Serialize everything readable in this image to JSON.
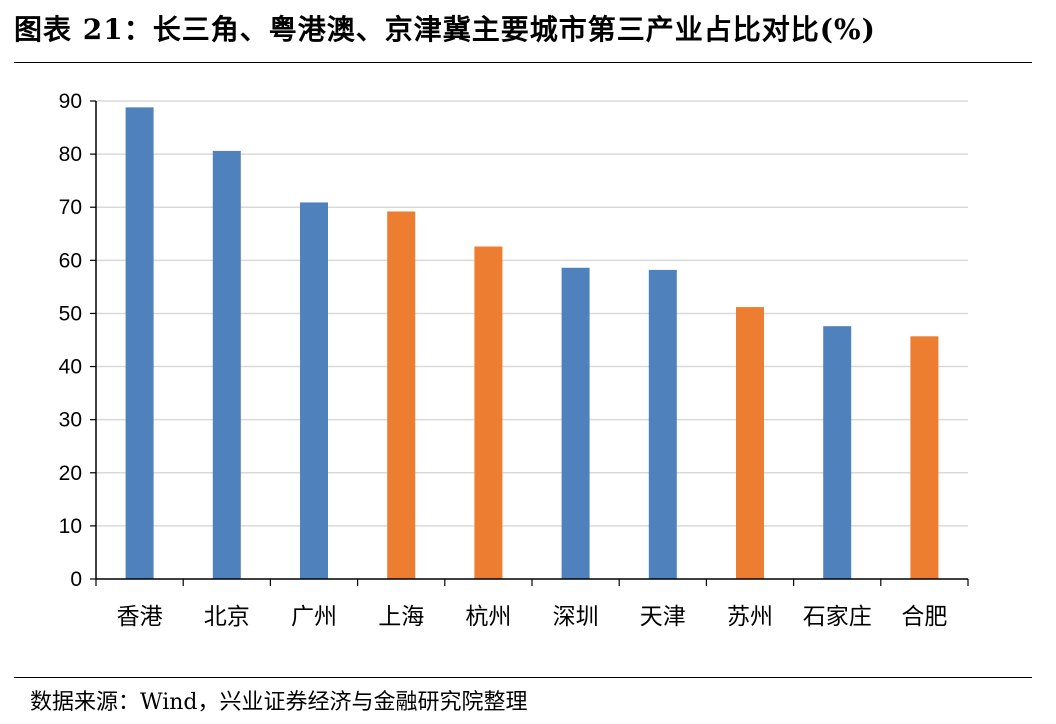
{
  "figure": {
    "title": "图表 21：长三角、粤港澳、京津冀主要城市第三产业占比对比(%)",
    "source": "数据来源：Wind，兴业证券经济与金融研究院整理"
  },
  "colors": {
    "blue": "#4f81bd",
    "orange": "#ed7d31",
    "grid": "#d9d9d9",
    "axis": "#000000"
  },
  "chart_data": {
    "type": "bar",
    "title": "图表 21：长三角、粤港澳、京津冀主要城市第三产业占比对比(%)",
    "xlabel": "",
    "ylabel": "",
    "categories": [
      "香港",
      "北京",
      "广州",
      "上海",
      "杭州",
      "深圳",
      "天津",
      "苏州",
      "石家庄",
      "合肥"
    ],
    "values": [
      88.8,
      80.6,
      70.9,
      69.2,
      62.6,
      58.6,
      58.2,
      51.2,
      47.6,
      45.7
    ],
    "bar_colors": [
      "blue",
      "blue",
      "blue",
      "orange",
      "orange",
      "blue",
      "blue",
      "orange",
      "blue",
      "orange"
    ],
    "ylim": [
      0,
      90
    ],
    "yticks": [
      0,
      10,
      20,
      30,
      40,
      50,
      60,
      70,
      80,
      90
    ],
    "grid": true,
    "legend": "none"
  }
}
